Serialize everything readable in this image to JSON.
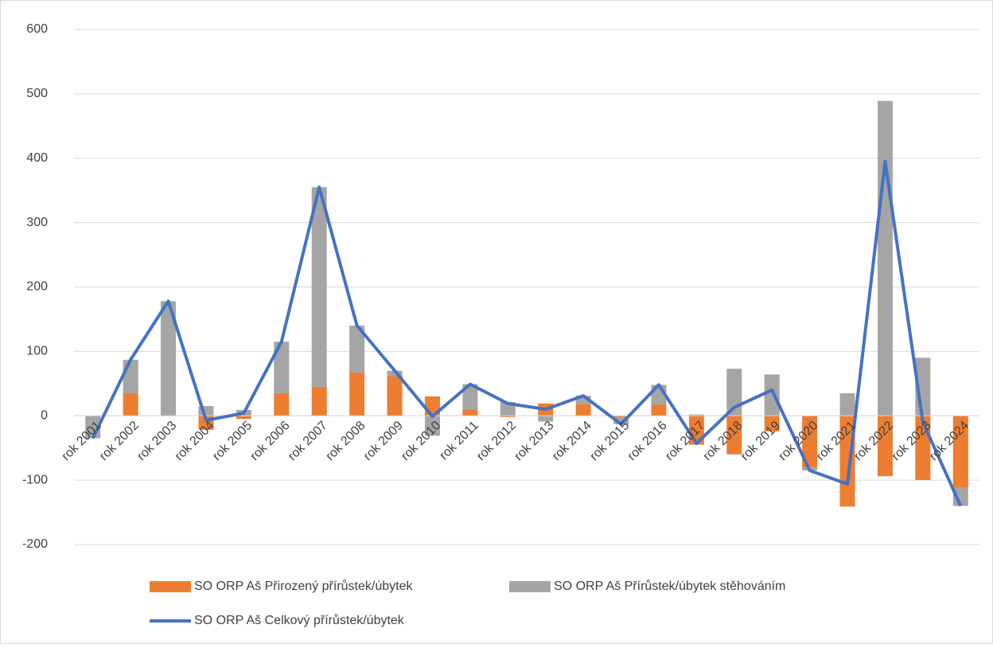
{
  "chart_data": {
    "type": "bar-line",
    "categories": [
      "rok 2001",
      "rok 2002",
      "rok 2003",
      "rok 2004",
      "rok 2005",
      "rok 2006",
      "rok 2007",
      "rok 2008",
      "rok 2009",
      "rok 2010",
      "rok 2011",
      "rok 2012",
      "rok 2013",
      "rok 2014",
      "rok 2015",
      "rok 2016",
      "rok 2017",
      "rok 2018",
      "rok 2019",
      "rok 2020",
      "rok 2021",
      "rok 2022",
      "rok 2023",
      "rok 2024"
    ],
    "series": [
      {
        "name": "SO ORP Aš Přirozený přírůstek/úbytek",
        "type": "bar",
        "color": "#ed7d31",
        "values": [
          0,
          35,
          0,
          -22,
          -5,
          35,
          45,
          67,
          62,
          30,
          10,
          -2,
          19,
          18,
          -2,
          17,
          -45,
          -60,
          -24,
          -80,
          -141,
          -94,
          -100,
          -111
        ]
      },
      {
        "name": "SO ORP Aš Přírůstek/úbytek stěhováním",
        "type": "bar",
        "color": "#a5a5a5",
        "values": [
          -35,
          52,
          178,
          15,
          9,
          80,
          310,
          73,
          8,
          -31,
          39,
          21,
          -9,
          13,
          -11,
          31,
          2,
          73,
          64,
          -5,
          35,
          489,
          90,
          -29
        ]
      },
      {
        "name": "SO ORP Aš Celkový přírůstek/úbytek",
        "type": "line",
        "color": "#4472c4",
        "values": [
          -35,
          87,
          178,
          -7,
          4,
          115,
          355,
          140,
          70,
          -1,
          49,
          19,
          10,
          31,
          -13,
          48,
          -43,
          13,
          40,
          -85,
          -106,
          395,
          -10,
          -140
        ]
      }
    ],
    "ylim": [
      -200,
      600
    ],
    "yticks": [
      -200,
      -100,
      0,
      100,
      200,
      300,
      400,
      500,
      600
    ],
    "grid": true
  }
}
